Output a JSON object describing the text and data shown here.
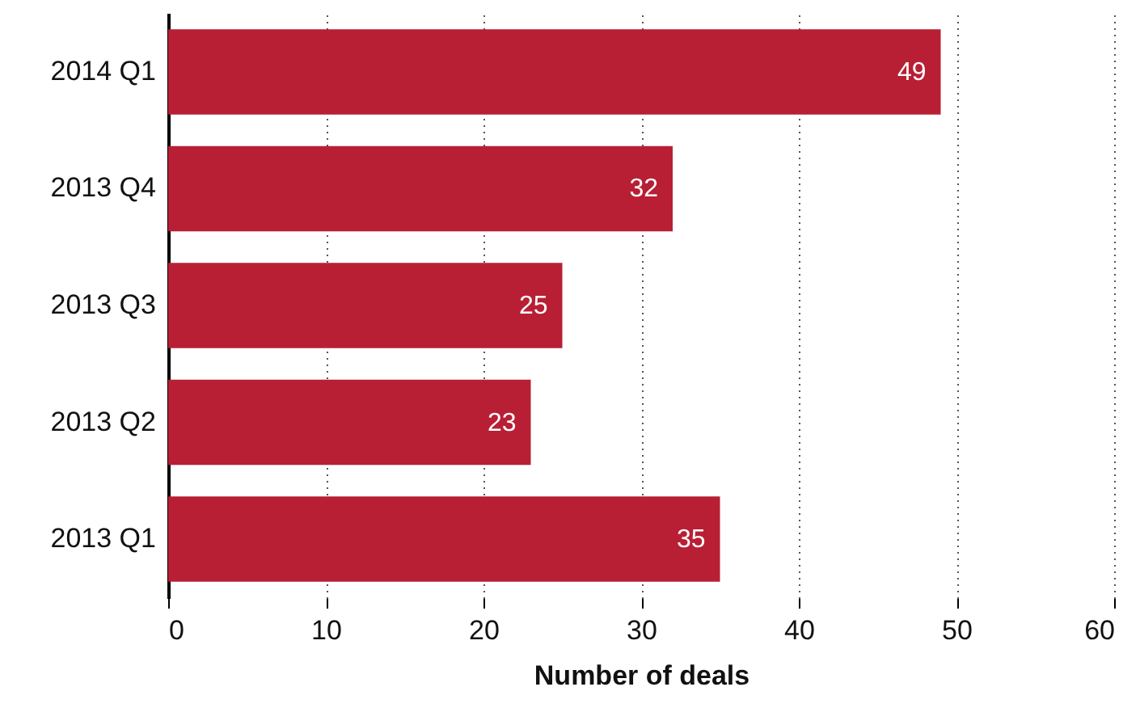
{
  "chart_data": {
    "type": "bar",
    "orientation": "horizontal",
    "xlabel": "Number of deals",
    "categories": [
      "2014 Q1",
      "2013 Q4",
      "2013 Q3",
      "2013 Q2",
      "2013 Q1"
    ],
    "values": [
      49,
      32,
      25,
      23,
      35
    ],
    "color": "#b81f34",
    "xlim": [
      0,
      60
    ],
    "xticks": [
      0,
      10,
      20,
      30,
      40,
      50,
      60
    ],
    "grid": "x",
    "data_labels": true
  }
}
